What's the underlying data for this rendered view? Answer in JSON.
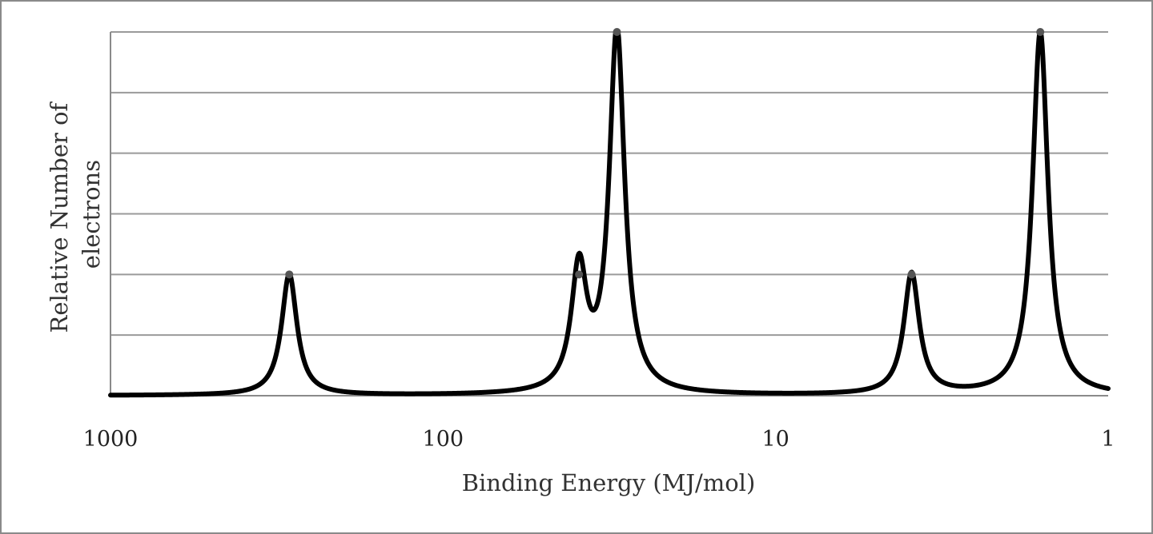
{
  "chart_data": {
    "type": "line",
    "title": "",
    "xlabel": "Binding Energy (MJ/mol)",
    "ylabel_lines": [
      "Relative Number of",
      "electrons"
    ],
    "x_scale": "log",
    "x_reversed": true,
    "xlim": [
      1000,
      1
    ],
    "x_ticks": [
      1000,
      100,
      10,
      1
    ],
    "x_tick_labels": [
      "1000",
      "100",
      "10",
      "1"
    ],
    "ylim": [
      0,
      6
    ],
    "y_gridlines": [
      1,
      2,
      3,
      4,
      5,
      6
    ],
    "grid": "horizontal",
    "legend": "none",
    "series": [
      {
        "color": "#000000",
        "peaks": [
          {
            "x": 290,
            "y": 2
          },
          {
            "x": 39,
            "y": 2
          },
          {
            "x": 30,
            "y": 6
          },
          {
            "x": 3.9,
            "y": 2
          },
          {
            "x": 1.6,
            "y": 6
          }
        ]
      }
    ]
  }
}
